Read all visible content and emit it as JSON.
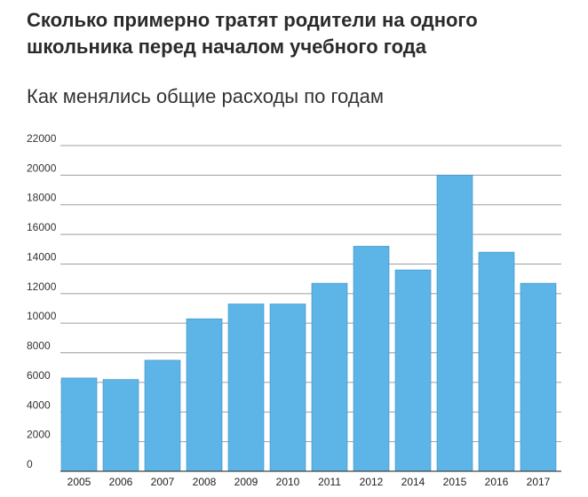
{
  "header": {
    "title_line1": "Сколько примерно тратят родители на одного",
    "title_line2": "школьника перед началом учебного года",
    "subtitle": "Как менялись общие расходы по годам"
  },
  "colors": {
    "bar": "#5db4e6",
    "grid": "#9e9e9e",
    "axis": "#444444"
  },
  "chart_data": {
    "type": "bar",
    "title": "Как менялись общие расходы по годам",
    "xlabel": "",
    "ylabel": "",
    "categories": [
      "2005",
      "2006",
      "2007",
      "2008",
      "2009",
      "2010",
      "2011",
      "2012",
      "2014",
      "2015",
      "2016",
      "2017"
    ],
    "values": [
      6300,
      6200,
      7500,
      10300,
      11300,
      11300,
      12700,
      15200,
      13600,
      20000,
      14800,
      12700
    ],
    "ylim": [
      0,
      22000
    ],
    "yticks": [
      0,
      2000,
      4000,
      6000,
      8000,
      10000,
      12000,
      14000,
      16000,
      18000,
      20000,
      22000
    ],
    "ytick_labels": [
      "0",
      "2000",
      "4000",
      "6000",
      "8000",
      "10000",
      "12000",
      "14000",
      "16000",
      "18000",
      "20000",
      "22000"
    ],
    "grid": true,
    "legend": "none"
  }
}
